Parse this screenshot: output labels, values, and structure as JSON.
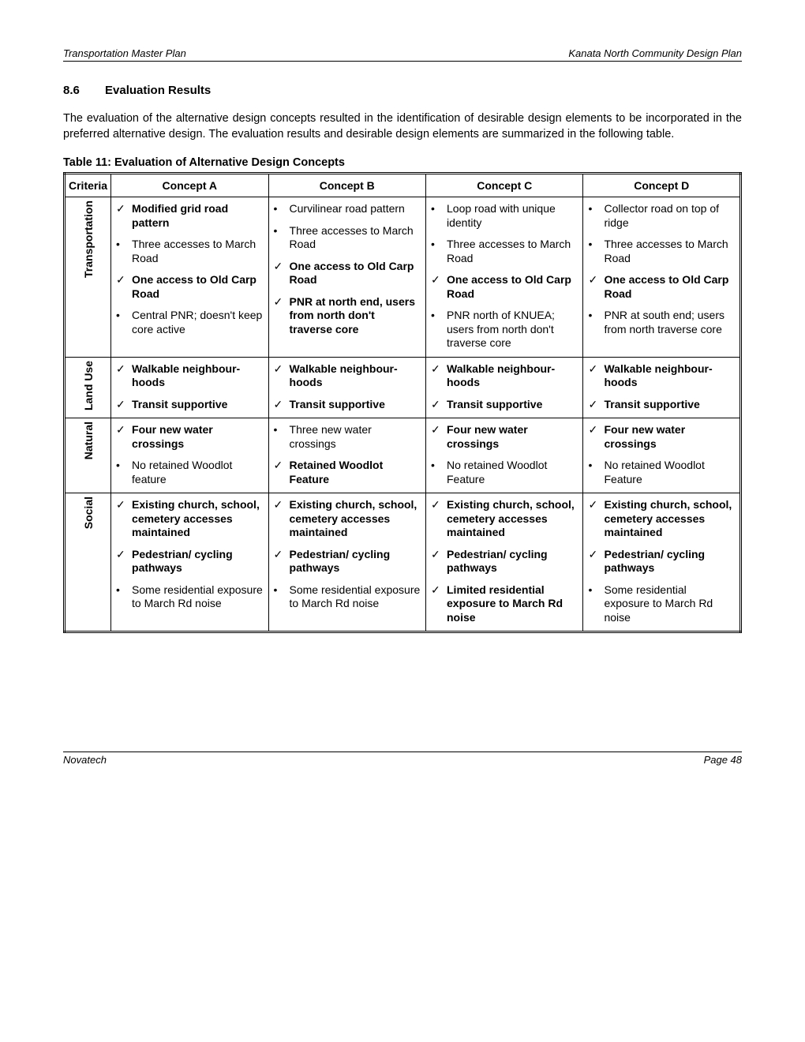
{
  "header": {
    "left": "Transportation Master Plan",
    "right": "Kanata North Community Design Plan"
  },
  "section": {
    "num": "8.6",
    "title": "Evaluation Results"
  },
  "paragraph": "The evaluation of the alternative design concepts resulted in the identification of desirable design elements to be incorporated in the preferred alternative design.  The evaluation results and desirable design elements are summarized in the following table.",
  "caption": "Table 11: Evaluation of Alternative Design Concepts",
  "headers": {
    "criteria": "Criteria",
    "a": "Concept A",
    "b": "Concept B",
    "c": "Concept C",
    "d": "Concept D"
  },
  "marks": {
    "check": "✓",
    "bullet": "•"
  },
  "rows": [
    {
      "criteria": "Transportation",
      "a": [
        {
          "m": "check",
          "bold": true,
          "t": "Modified grid road pattern"
        },
        {
          "m": "bullet",
          "bold": false,
          "t": "Three accesses to March Road"
        },
        {
          "m": "check",
          "bold": true,
          "t": "One access to Old Carp Road"
        },
        {
          "m": "bullet",
          "bold": false,
          "t": "Central PNR; doesn't keep core active"
        }
      ],
      "b": [
        {
          "m": "bullet",
          "bold": false,
          "t": "Curvilinear road pattern"
        },
        {
          "m": "bullet",
          "bold": false,
          "t": "Three accesses to March Road"
        },
        {
          "m": "check",
          "bold": true,
          "t": "One access to Old Carp Road"
        },
        {
          "m": "check",
          "bold": true,
          "t": "PNR at north end, users from north don't traverse core"
        }
      ],
      "c": [
        {
          "m": "bullet",
          "bold": false,
          "t": "Loop road with unique identity"
        },
        {
          "m": "bullet",
          "bold": false,
          "t": "Three accesses to March Road"
        },
        {
          "m": "check",
          "bold": true,
          "t": "One access to Old Carp Road"
        },
        {
          "m": "bullet",
          "bold": false,
          "t": "PNR north of KNUEA; users from north don't traverse core"
        }
      ],
      "d": [
        {
          "m": "bullet",
          "bold": false,
          "t": "Collector road on top of ridge"
        },
        {
          "m": "bullet",
          "bold": false,
          "t": "Three accesses to March Road"
        },
        {
          "m": "check",
          "bold": true,
          "t": "One access to Old Carp Road"
        },
        {
          "m": "bullet",
          "bold": false,
          "t": "PNR at south end; users from north traverse core"
        }
      ]
    },
    {
      "criteria": "Land Use",
      "a": [
        {
          "m": "check",
          "bold": true,
          "t": "Walkable neighbour-hoods"
        },
        {
          "m": "check",
          "bold": true,
          "t": "Transit supportive"
        }
      ],
      "b": [
        {
          "m": "check",
          "bold": true,
          "t": "Walkable neighbour-hoods"
        },
        {
          "m": "check",
          "bold": true,
          "t": "Transit supportive"
        }
      ],
      "c": [
        {
          "m": "check",
          "bold": true,
          "t": "Walkable neighbour-hoods"
        },
        {
          "m": "check",
          "bold": true,
          "t": "Transit supportive"
        }
      ],
      "d": [
        {
          "m": "check",
          "bold": true,
          "t": "Walkable neighbour-hoods"
        },
        {
          "m": "check",
          "bold": true,
          "t": "Transit supportive"
        }
      ]
    },
    {
      "criteria": "Natural",
      "a": [
        {
          "m": "check",
          "bold": true,
          "t": "Four new water crossings"
        },
        {
          "m": "bullet",
          "bold": false,
          "t": "No retained Woodlot feature"
        }
      ],
      "b": [
        {
          "m": "bullet",
          "bold": false,
          "t": "Three new water crossings"
        },
        {
          "m": "check",
          "bold": true,
          "t": "Retained Woodlot Feature"
        }
      ],
      "c": [
        {
          "m": "check",
          "bold": true,
          "t": "Four new water crossings"
        },
        {
          "m": "bullet",
          "bold": false,
          "t": "No retained Woodlot Feature"
        }
      ],
      "d": [
        {
          "m": "check",
          "bold": true,
          "t": "Four new water crossings"
        },
        {
          "m": "bullet",
          "bold": false,
          "t": "No retained Woodlot Feature"
        }
      ]
    },
    {
      "criteria": "Social",
      "a": [
        {
          "m": "check",
          "bold": true,
          "t": "Existing church, school, cemetery accesses maintained"
        },
        {
          "m": "check",
          "bold": true,
          "t": "Pedestrian/ cycling pathways"
        },
        {
          "m": "bullet",
          "bold": false,
          "t": "Some residential exposure to March Rd noise"
        }
      ],
      "b": [
        {
          "m": "check",
          "bold": true,
          "t": "Existing church, school, cemetery accesses maintained"
        },
        {
          "m": "check",
          "bold": true,
          "t": "Pedestrian/ cycling pathways"
        },
        {
          "m": "bullet",
          "bold": false,
          "t": "Some residential exposure to March Rd noise"
        }
      ],
      "c": [
        {
          "m": "check",
          "bold": true,
          "t": "Existing church, school, cemetery accesses maintained"
        },
        {
          "m": "check",
          "bold": true,
          "t": "Pedestrian/ cycling pathways"
        },
        {
          "m": "check",
          "bold": true,
          "t": "Limited residential exposure to March Rd noise"
        }
      ],
      "d": [
        {
          "m": "check",
          "bold": true,
          "t": "Existing church, school, cemetery accesses maintained"
        },
        {
          "m": "check",
          "bold": true,
          "t": "Pedestrian/ cycling pathways"
        },
        {
          "m": "bullet",
          "bold": false,
          "t": "Some residential exposure to March Rd noise"
        }
      ]
    }
  ],
  "footer": {
    "left": "Novatech",
    "right": "Page 48"
  }
}
